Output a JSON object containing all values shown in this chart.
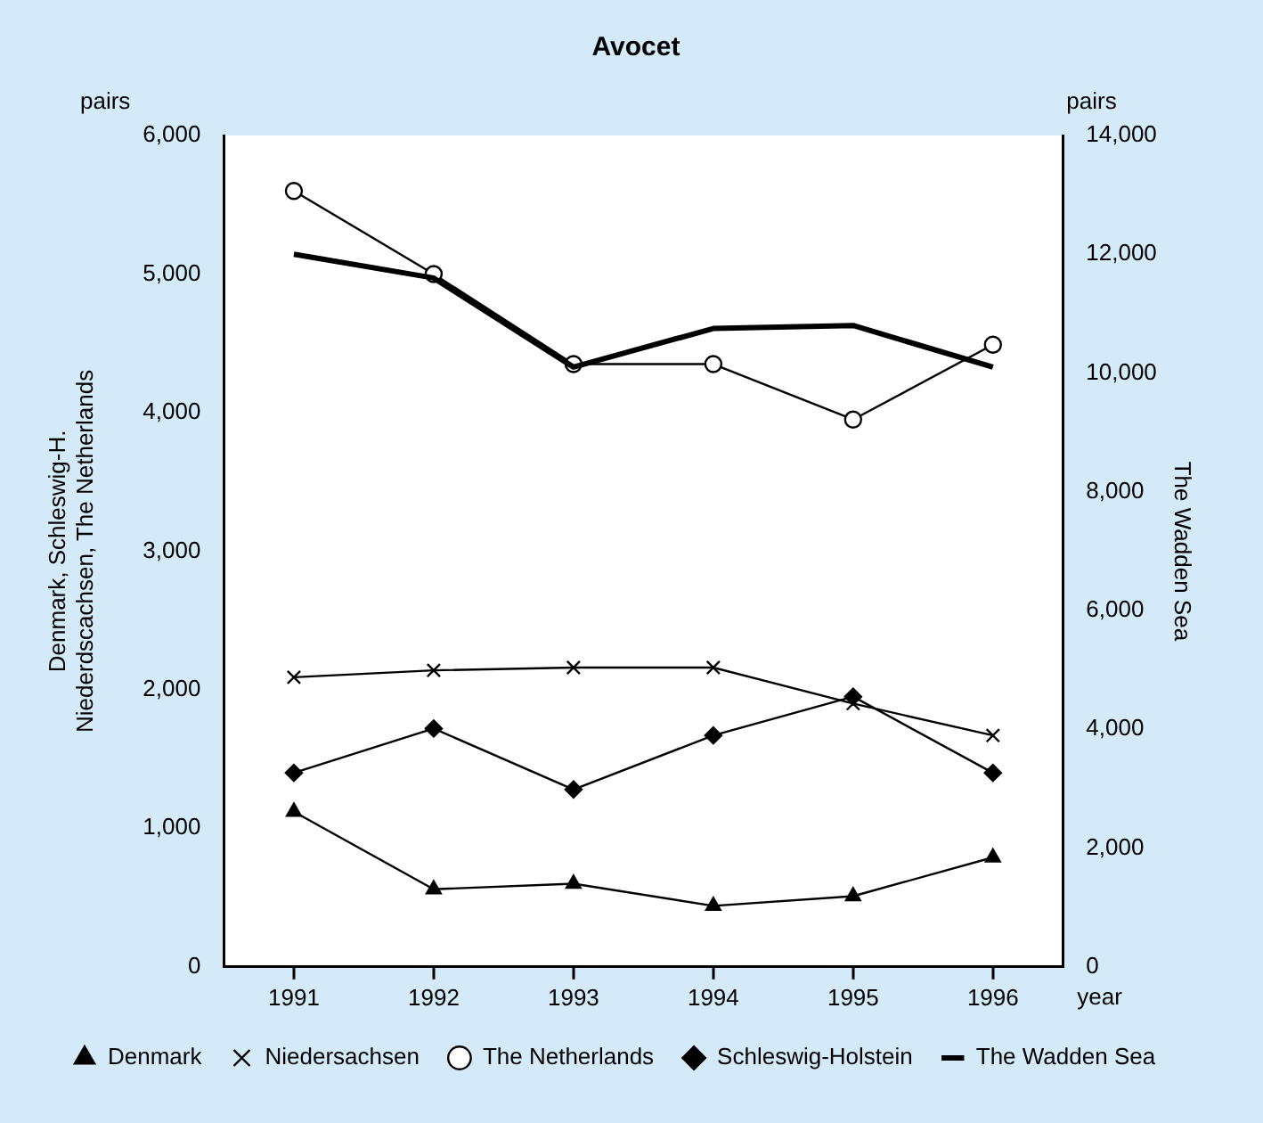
{
  "chart_data": {
    "type": "line",
    "title": "Avocet",
    "ylabel": "Denmark, Schleswig-H.\nNiederdscachsen, The Netherlands",
    "y2label": "The Wadden Sea",
    "annotations": [
      "pairs",
      "pairs",
      "year"
    ],
    "categories": [
      "1991",
      "1992",
      "1993",
      "1994",
      "1995",
      "1996"
    ],
    "series": [
      {
        "name": "Denmark",
        "color": "#000000",
        "marker": "triangle",
        "values": [
          1120,
          560,
          600,
          440,
          510,
          790
        ]
      },
      {
        "name": "Niedersachsen",
        "color": "#000000",
        "marker": "cross",
        "values": [
          2090,
          2140,
          2160,
          2160,
          1900,
          1670
        ]
      },
      {
        "name": "The Netherlands",
        "color": "#000000",
        "marker": "circle",
        "values": [
          5600,
          5000,
          4350,
          4350,
          3950,
          4490
        ]
      },
      {
        "name": "Schleswig-Holstein",
        "color": "#000000",
        "marker": "diamond",
        "values": [
          1400,
          1720,
          1280,
          1670,
          1950,
          1400
        ]
      },
      {
        "name": "The Wadden Sea",
        "color": "#000000",
        "marker": "none",
        "axis": "y2",
        "values": [
          12000,
          11600,
          10100,
          10750,
          10800,
          10100
        ]
      }
    ],
    "ylim": [
      0,
      6000
    ],
    "yticks": [
      {
        "value": 0,
        "label": "0"
      },
      {
        "value": 1000,
        "label": "1,000"
      },
      {
        "value": 2000,
        "label": "2,000"
      },
      {
        "value": 3000,
        "label": "3,000"
      },
      {
        "value": 4000,
        "label": "4,000"
      },
      {
        "value": 5000,
        "label": "5,000"
      },
      {
        "value": 6000,
        "label": "6,000"
      }
    ],
    "y2lim": [
      0,
      14000
    ],
    "y2ticks": [
      {
        "value": 0,
        "label": "0"
      },
      {
        "value": 2000,
        "label": "2,000"
      },
      {
        "value": 4000,
        "label": "4,000"
      },
      {
        "value": 6000,
        "label": "6,000"
      },
      {
        "value": 8000,
        "label": "8,000"
      },
      {
        "value": 10000,
        "label": "10,000"
      },
      {
        "value": 12000,
        "label": "12,000"
      },
      {
        "value": 14000,
        "label": "14,000"
      }
    ],
    "grid": false,
    "legend": "bottom"
  }
}
